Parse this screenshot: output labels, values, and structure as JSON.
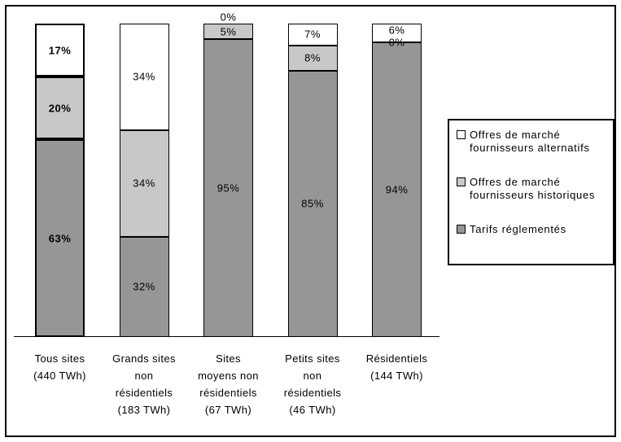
{
  "figure": {
    "background": "#FFFFFF",
    "frame_border_color": "#000000"
  },
  "chart_data": {
    "type": "bar",
    "stacked": true,
    "value_unit": "%",
    "ylim": [
      0,
      100
    ],
    "grid": false,
    "legend_position": "right",
    "data_label_format": "{value}%",
    "categories": [
      {
        "label": "Tous sites (440 TWh)",
        "lines": [
          "Tous sites",
          "(440 TWh)"
        ],
        "emphasized": true
      },
      {
        "label": "Grands sites non résidentiels (183 TWh)",
        "lines": [
          "Grands sites",
          "non",
          "résidentiels",
          "(183 TWh)"
        ],
        "emphasized": false
      },
      {
        "label": "Sites moyens non résidentiels (67 TWh)",
        "lines": [
          "Sites",
          "moyens non",
          "résidentiels",
          "(67 TWh)"
        ],
        "emphasized": false
      },
      {
        "label": "Petits sites non résidentiels (46 TWh)",
        "lines": [
          "Petits sites",
          "non",
          "résidentiels",
          "(46 TWh)"
        ],
        "emphasized": false
      },
      {
        "label": "Résidentiels (144 TWh)",
        "lines": [
          "Résidentiels",
          "(144 TWh)"
        ],
        "emphasized": false
      }
    ],
    "series": [
      {
        "name": "Tarifs réglementés",
        "color": "#969696",
        "values": [
          63,
          32,
          95,
          85,
          94
        ]
      },
      {
        "name": "Offres de marché fournisseurs historiques",
        "color": "#C8C8C8",
        "values": [
          20,
          34,
          5,
          8,
          0
        ]
      },
      {
        "name": "Offres de marché fournisseurs alternatifs",
        "color": "#FFFFFF",
        "values": [
          17,
          34,
          0,
          7,
          6
        ]
      }
    ]
  },
  "legend": {
    "items": [
      {
        "label": "Offres de marché fournisseurs alternatifs",
        "swatch_color": "#FFFFFF"
      },
      {
        "label": "Offres de marché fournisseurs historiques",
        "swatch_color": "#C8C8C8"
      },
      {
        "label": "Tarifs réglementés",
        "swatch_color": "#969696"
      }
    ]
  }
}
